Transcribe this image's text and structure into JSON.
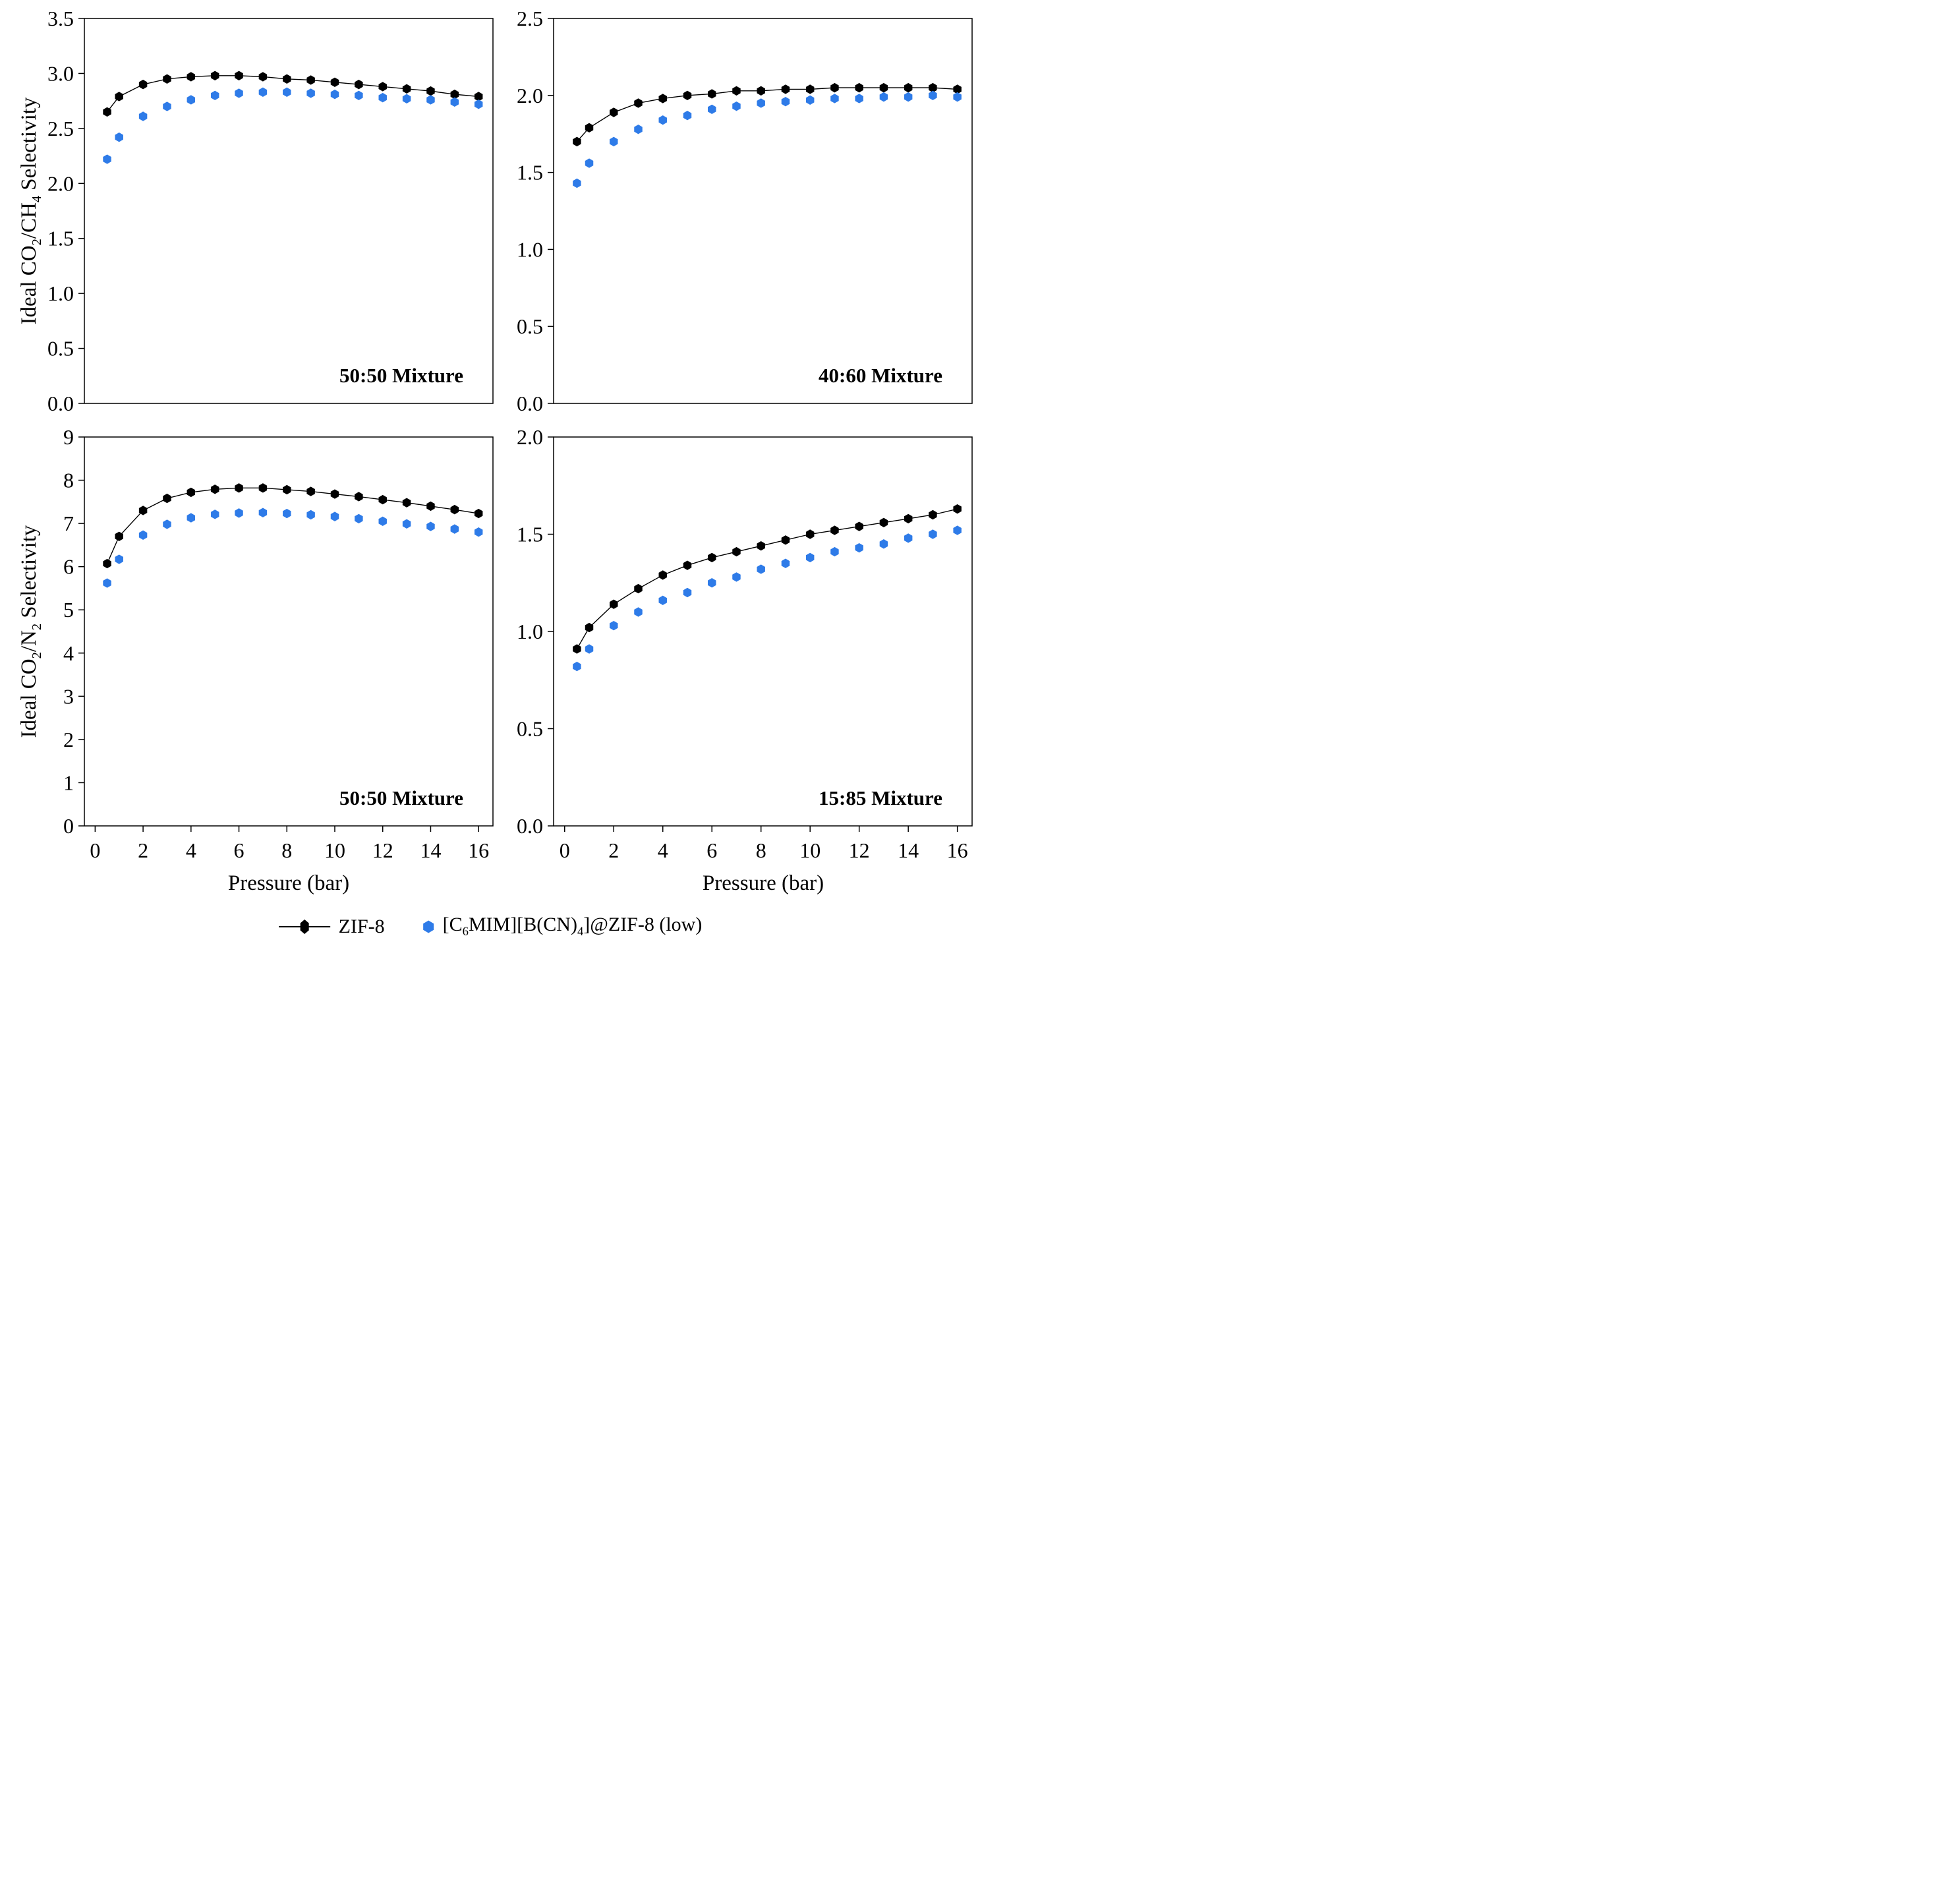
{
  "page": {
    "background": "#ffffff"
  },
  "colors": {
    "zif8": "#000000",
    "il": "#2E7BE8"
  },
  "x_axis": {
    "label": "Pressure (bar)",
    "ticks": [
      "0",
      "2",
      "4",
      "6",
      "8",
      "10",
      "12",
      "14",
      "16"
    ]
  },
  "legend": {
    "position": "bottom-center",
    "items": [
      {
        "label": "ZIF-8",
        "marker": "black-hexagon-with-line"
      },
      {
        "label_parts": [
          "[C",
          "6",
          "MIM][B(CN)",
          "4",
          "]@ZIF-8 (low)"
        ],
        "marker": "blue-hexagon"
      }
    ]
  },
  "chart_data": [
    {
      "id": "co2-ch4-50-50",
      "type": "scatter",
      "position": "top-left",
      "title": "",
      "annotation": "50:50 Mixture",
      "ylabel_parts": [
        "Ideal CO",
        "2",
        "/CH",
        "4",
        " Selectivity"
      ],
      "xlabel": "",
      "grid": false,
      "xlim": [
        -0.45,
        16.6
      ],
      "ylim": [
        0,
        3.5
      ],
      "yticks": [
        "0.0",
        "0.5",
        "1.0",
        "1.5",
        "2.0",
        "2.5",
        "3.0",
        "3.5"
      ],
      "show_x_tick_labels": false,
      "x": [
        0.5,
        1,
        2,
        3,
        4,
        5,
        6,
        7,
        8,
        9,
        10,
        11,
        12,
        13,
        14,
        15,
        16
      ],
      "series": [
        {
          "name": "ZIF-8",
          "color_key": "zif8",
          "line": true,
          "values": [
            2.65,
            2.79,
            2.9,
            2.95,
            2.97,
            2.98,
            2.98,
            2.97,
            2.95,
            2.94,
            2.92,
            2.9,
            2.88,
            2.86,
            2.84,
            2.81,
            2.79
          ]
        },
        {
          "name": "[C6MIM][B(CN)4]@ZIF-8 (low)",
          "color_key": "il",
          "line": false,
          "values": [
            2.22,
            2.42,
            2.61,
            2.7,
            2.76,
            2.8,
            2.82,
            2.83,
            2.83,
            2.82,
            2.81,
            2.8,
            2.78,
            2.77,
            2.76,
            2.74,
            2.72
          ]
        }
      ]
    },
    {
      "id": "co2-ch4-40-60",
      "type": "scatter",
      "position": "top-right",
      "title": "",
      "annotation": "40:60 Mixture",
      "ylabel_parts": null,
      "xlabel": "",
      "grid": false,
      "xlim": [
        -0.45,
        16.6
      ],
      "ylim": [
        0,
        2.5
      ],
      "yticks": [
        "0.0",
        "0.5",
        "1.0",
        "1.5",
        "2.0",
        "2.5"
      ],
      "show_x_tick_labels": false,
      "x": [
        0.5,
        1,
        2,
        3,
        4,
        5,
        6,
        7,
        8,
        9,
        10,
        11,
        12,
        13,
        14,
        15,
        16
      ],
      "series": [
        {
          "name": "ZIF-8",
          "color_key": "zif8",
          "line": true,
          "values": [
            1.7,
            1.79,
            1.89,
            1.95,
            1.98,
            2.0,
            2.01,
            2.03,
            2.03,
            2.04,
            2.04,
            2.05,
            2.05,
            2.05,
            2.05,
            2.05,
            2.04
          ]
        },
        {
          "name": "[C6MIM][B(CN)4]@ZIF-8 (low)",
          "color_key": "il",
          "line": false,
          "values": [
            1.43,
            1.56,
            1.7,
            1.78,
            1.84,
            1.87,
            1.91,
            1.93,
            1.95,
            1.96,
            1.97,
            1.98,
            1.98,
            1.99,
            1.99,
            2.0,
            1.99
          ]
        }
      ]
    },
    {
      "id": "co2-n2-50-50",
      "type": "scatter",
      "position": "bottom-left",
      "title": "",
      "annotation": "50:50 Mixture",
      "ylabel_parts": [
        "Ideal CO",
        "2",
        "/N",
        "2",
        " Selectivity"
      ],
      "xlabel": "Pressure (bar)",
      "grid": false,
      "xlim": [
        -0.45,
        16.6
      ],
      "ylim": [
        0,
        9
      ],
      "yticks": [
        "0",
        "1",
        "2",
        "3",
        "4",
        "5",
        "6",
        "7",
        "8",
        "9"
      ],
      "show_x_tick_labels": true,
      "x": [
        0.5,
        1,
        2,
        3,
        4,
        5,
        6,
        7,
        8,
        9,
        10,
        11,
        12,
        13,
        14,
        15,
        16
      ],
      "series": [
        {
          "name": "ZIF-8",
          "color_key": "zif8",
          "line": true,
          "values": [
            6.07,
            6.7,
            7.3,
            7.58,
            7.72,
            7.79,
            7.82,
            7.82,
            7.78,
            7.74,
            7.68,
            7.62,
            7.55,
            7.48,
            7.4,
            7.32,
            7.23
          ]
        },
        {
          "name": "[C6MIM][B(CN)4]@ZIF-8 (low)",
          "color_key": "il",
          "line": false,
          "values": [
            5.62,
            6.17,
            6.73,
            6.98,
            7.13,
            7.21,
            7.24,
            7.25,
            7.23,
            7.2,
            7.16,
            7.11,
            7.05,
            6.99,
            6.93,
            6.87,
            6.8
          ]
        }
      ]
    },
    {
      "id": "co2-n2-15-85",
      "type": "scatter",
      "position": "bottom-right",
      "title": "",
      "annotation": "15:85 Mixture",
      "ylabel_parts": null,
      "xlabel": "Pressure (bar)",
      "grid": false,
      "xlim": [
        -0.45,
        16.6
      ],
      "ylim": [
        0,
        2.0
      ],
      "yticks": [
        "0.0",
        "0.5",
        "1.0",
        "1.5",
        "2.0"
      ],
      "show_x_tick_labels": true,
      "x": [
        0.5,
        1,
        2,
        3,
        4,
        5,
        6,
        7,
        8,
        9,
        10,
        11,
        12,
        13,
        14,
        15,
        16
      ],
      "series": [
        {
          "name": "ZIF-8",
          "color_key": "zif8",
          "line": true,
          "values": [
            0.91,
            1.02,
            1.14,
            1.22,
            1.29,
            1.34,
            1.38,
            1.41,
            1.44,
            1.47,
            1.5,
            1.52,
            1.54,
            1.56,
            1.58,
            1.6,
            1.63
          ]
        },
        {
          "name": "[C6MIM][B(CN)4]@ZIF-8 (low)",
          "color_key": "il",
          "line": false,
          "values": [
            0.82,
            0.91,
            1.03,
            1.1,
            1.16,
            1.2,
            1.25,
            1.28,
            1.32,
            1.35,
            1.38,
            1.41,
            1.43,
            1.45,
            1.48,
            1.5,
            1.52
          ]
        }
      ]
    }
  ]
}
